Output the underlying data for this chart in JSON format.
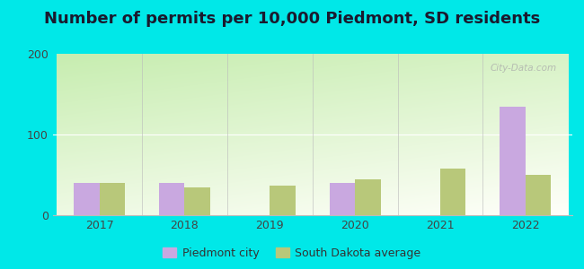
{
  "title": "Number of permits per 10,000 Piedmont, SD residents",
  "years": [
    2017,
    2018,
    2019,
    2020,
    2021,
    2022
  ],
  "piedmont": [
    40,
    40,
    0,
    40,
    0,
    135
  ],
  "sd_avg": [
    40,
    35,
    37,
    45,
    58,
    50
  ],
  "piedmont_color": "#c9a8e0",
  "sd_avg_color": "#b8c87a",
  "ylim": [
    0,
    200
  ],
  "yticks": [
    0,
    100,
    200
  ],
  "background_outer": "#00e8e8",
  "title_fontsize": 13,
  "bar_width": 0.3,
  "legend_label_piedmont": "Piedmont city",
  "legend_label_sd": "South Dakota average",
  "watermark": "City-Data.com",
  "grad_top_left": "#b8dda0",
  "grad_bottom_right": "#f8fff8"
}
